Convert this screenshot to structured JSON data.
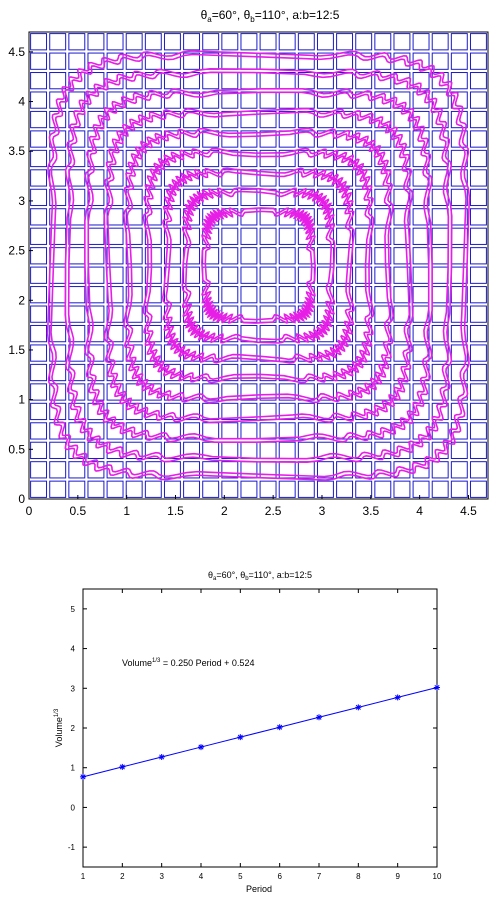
{
  "chart_data": [
    {
      "type": "scatter",
      "title": {
        "theta_a_prefix": "θ",
        "theta_a_sub": "a",
        "theta_a_val": "=60°, ",
        "theta_b_prefix": "θ",
        "theta_b_sub": "b",
        "rest": "=110°, a:b=12:5"
      },
      "xlim": [
        0,
        4.7
      ],
      "ylim": [
        0,
        4.7
      ],
      "xticks": [
        "0",
        "0.5",
        "1",
        "1.5",
        "2",
        "2.5",
        "3",
        "3.5",
        "4",
        "4.5"
      ],
      "yticks": [
        "0",
        "0.5",
        "1",
        "1.5",
        "2",
        "2.5",
        "3",
        "3.5",
        "4",
        "4.5"
      ],
      "grid_squares": {
        "count_per_side": 24,
        "color": "#1a1acc"
      },
      "contours": {
        "color": "#e61ee6",
        "center": [
          2.35,
          2.35
        ],
        "half_widths": [
          2.1,
          1.92,
          1.72,
          1.52,
          1.32,
          1.12,
          0.92,
          0.72,
          0.52
        ]
      }
    },
    {
      "type": "line",
      "title": {
        "theta_a_prefix": "θ",
        "theta_a_sub": "a",
        "theta_a_val": "=60°, ",
        "theta_b_prefix": "θ",
        "theta_b_sub": "b",
        "rest": "=110°, a:b=12:5"
      },
      "xlabel": "Period",
      "ylabel_main": "Volume",
      "ylabel_sup": "1/3",
      "annotation": {
        "prefix": "Volume",
        "sup": "1/3",
        "rest": " = 0.250 Period + 0.524"
      },
      "xlim": [
        1,
        10
      ],
      "ylim": [
        -1.5,
        5.5
      ],
      "xticks": [
        "1",
        "2",
        "3",
        "4",
        "5",
        "6",
        "7",
        "8",
        "9",
        "10"
      ],
      "yticks": [
        "-1",
        "0",
        "1",
        "2",
        "3",
        "4",
        "5"
      ],
      "series": [
        {
          "x": [
            1,
            2,
            3,
            4,
            5,
            6,
            7,
            8,
            9,
            10
          ],
          "values": [
            0.77,
            1.02,
            1.27,
            1.52,
            1.77,
            2.02,
            2.27,
            2.52,
            2.77,
            3.02
          ],
          "color": "#0000ff"
        }
      ]
    }
  ]
}
